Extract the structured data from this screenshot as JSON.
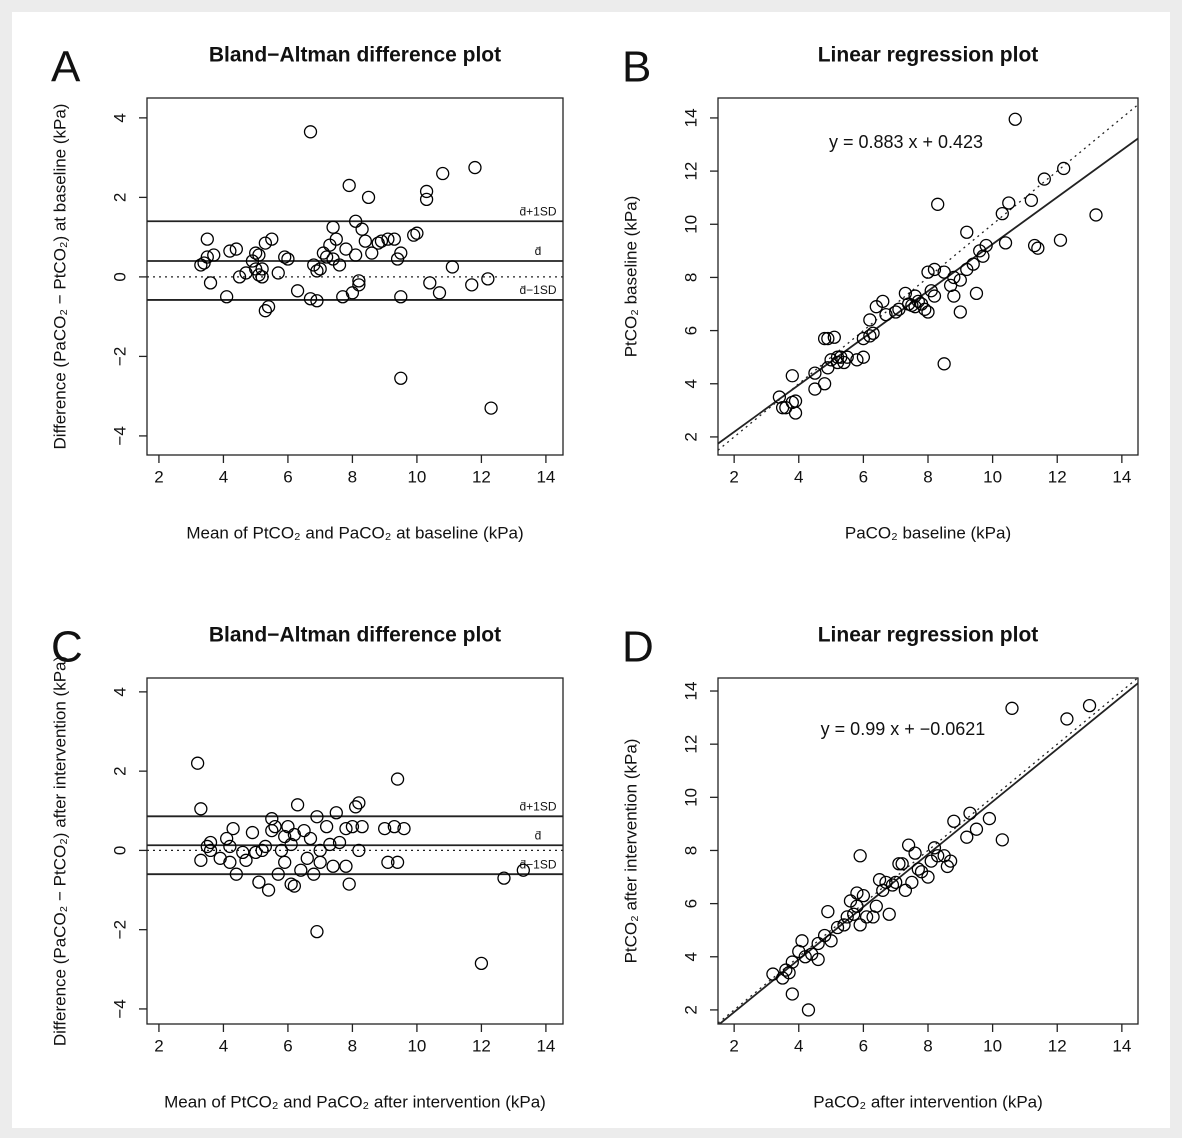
{
  "chart_data": [
    {
      "type": "bland-altman",
      "panel_label": "A",
      "title": "Bland−Altman difference plot",
      "x_label": "Mean of PtCO₂ and PaCO₂ at baseline (kPa)",
      "y_label": "Difference (PaCO₂ − PtCO₂) at baseline (kPa)",
      "xlim": [
        1.63,
        14.53
      ],
      "ylim": [
        -4.48,
        4.5
      ],
      "xticks": [
        2,
        4,
        6,
        8,
        10,
        12,
        14
      ],
      "yticks": [
        {
          "value": -4,
          "label": "−4"
        },
        {
          "value": -2,
          "label": "−2"
        },
        0,
        2,
        4
      ],
      "reference_lines": [
        {
          "value": 1.4,
          "label": "d̄+1SD"
        },
        {
          "value": 0.4,
          "label": "d̄"
        },
        {
          "value": -0.58,
          "label": "d̄−1SD"
        },
        {
          "value": 0,
          "style": "dotted"
        }
      ],
      "marker_color": "#000000",
      "x": [
        3.3,
        3.4,
        3.5,
        3.5,
        3.6,
        3.7,
        4.1,
        4.2,
        4.4,
        4.5,
        4.7,
        4.9,
        5.0,
        5.0,
        5.1,
        5.1,
        5.2,
        5.2,
        5.3,
        5.3,
        5.4,
        5.5,
        5.7,
        5.9,
        6.0,
        6.3,
        6.7,
        6.7,
        6.8,
        6.9,
        6.9,
        7.0,
        7.1,
        7.2,
        7.3,
        7.4,
        7.4,
        7.5,
        7.6,
        7.7,
        7.8,
        7.9,
        8.0,
        8.1,
        8.1,
        8.2,
        8.2,
        8.3,
        8.4,
        8.5,
        8.6,
        8.8,
        8.9,
        9.1,
        9.3,
        9.4,
        9.5,
        9.5,
        9.5,
        9.9,
        10.0,
        10.3,
        10.3,
        10.4,
        10.7,
        10.8,
        11.1,
        11.7,
        11.8,
        12.2,
        12.3
      ],
      "values": [
        0.3,
        0.35,
        0.95,
        0.5,
        -0.15,
        0.55,
        -0.5,
        0.65,
        0.7,
        0.0,
        0.1,
        0.4,
        0.6,
        0.2,
        0.55,
        0.05,
        0.2,
        0.0,
        -0.85,
        0.85,
        -0.75,
        0.95,
        0.1,
        0.5,
        0.45,
        -0.35,
        3.65,
        -0.55,
        0.3,
        -0.6,
        0.15,
        0.2,
        0.6,
        0.5,
        0.8,
        1.25,
        0.45,
        0.95,
        0.3,
        -0.5,
        0.7,
        2.3,
        -0.4,
        1.4,
        0.55,
        -0.1,
        -0.2,
        1.2,
        0.9,
        2.0,
        0.6,
        0.85,
        0.9,
        0.95,
        0.95,
        0.45,
        0.6,
        -0.5,
        -2.55,
        1.05,
        1.1,
        2.15,
        1.95,
        -0.15,
        -0.4,
        2.6,
        0.25,
        -0.2,
        2.75,
        -0.05,
        -3.3
      ]
    },
    {
      "type": "regression",
      "panel_label": "B",
      "title": "Linear regression plot",
      "x_label": "PaCO₂ baseline (kPa)",
      "y_label": "PtCO₂ baseline (kPa)",
      "xlim": [
        1.5,
        14.5
      ],
      "ylim": [
        1.32,
        14.75
      ],
      "xticks": [
        2,
        4,
        6,
        8,
        10,
        12,
        14
      ],
      "yticks": [
        2,
        4,
        6,
        8,
        10,
        12,
        14
      ],
      "annotation": "y = 0.883 x + 0.423",
      "fit_lines": [
        {
          "slope": 0.883,
          "intercept": 0.423,
          "style": "solid"
        },
        {
          "slope": 1,
          "intercept": 0,
          "style": "dotted"
        }
      ],
      "marker_color": "#000000",
      "x": [
        3.4,
        3.5,
        3.6,
        3.8,
        3.8,
        3.9,
        3.9,
        4.5,
        4.5,
        4.8,
        4.8,
        4.9,
        4.9,
        5.0,
        5.1,
        5.2,
        5.2,
        5.3,
        5.4,
        5.5,
        5.8,
        6.0,
        6.0,
        6.2,
        6.2,
        6.3,
        6.4,
        6.6,
        6.7,
        7.0,
        7.1,
        7.3,
        7.4,
        7.5,
        7.6,
        7.6,
        7.7,
        7.8,
        7.9,
        8.0,
        8.0,
        8.1,
        8.2,
        8.2,
        8.3,
        8.5,
        8.5,
        8.7,
        8.8,
        8.8,
        9.0,
        9.0,
        9.2,
        9.2,
        9.4,
        9.5,
        9.6,
        9.7,
        9.8,
        10.3,
        10.4,
        10.5,
        10.7,
        11.2,
        11.3,
        11.4,
        11.6,
        12.1,
        12.2,
        13.2
      ],
      "values": [
        3.5,
        3.1,
        3.1,
        3.3,
        4.3,
        2.9,
        3.35,
        3.8,
        4.4,
        4.0,
        5.7,
        5.7,
        4.6,
        4.9,
        5.75,
        4.8,
        5.0,
        5.0,
        4.8,
        5.0,
        4.9,
        5.0,
        5.7,
        6.4,
        5.8,
        5.9,
        6.9,
        7.1,
        6.6,
        6.7,
        6.8,
        7.4,
        7.0,
        6.95,
        7.3,
        6.9,
        7.1,
        7.0,
        6.8,
        8.2,
        6.7,
        7.5,
        8.3,
        7.3,
        10.75,
        4.75,
        8.2,
        7.7,
        7.3,
        8.0,
        6.7,
        7.9,
        9.7,
        8.3,
        8.5,
        7.4,
        9.0,
        8.8,
        9.2,
        10.4,
        9.3,
        10.8,
        13.95,
        10.9,
        9.2,
        9.1,
        11.7,
        9.4,
        12.1,
        10.35
      ]
    },
    {
      "type": "bland-altman",
      "panel_label": "C",
      "title": "Bland−Altman difference plot",
      "x_label": "Mean of PtCO₂ and PaCO₂ after intervention (kPa)",
      "y_label": "Difference (PaCO₂ − PtCO₂) after intervention (kPa)",
      "xlim": [
        1.63,
        14.53
      ],
      "ylim": [
        -4.38,
        4.35
      ],
      "xticks": [
        2,
        4,
        6,
        8,
        10,
        12,
        14
      ],
      "yticks": [
        {
          "value": -4,
          "label": "−4"
        },
        {
          "value": -2,
          "label": "−2"
        },
        0,
        2,
        4
      ],
      "reference_lines": [
        {
          "value": 0.86,
          "label": "d̄+1SD"
        },
        {
          "value": 0.13,
          "label": "d̄"
        },
        {
          "value": -0.6,
          "label": "d̄−1SD"
        },
        {
          "value": 0,
          "style": "dotted"
        }
      ],
      "marker_color": "#000000",
      "x": [
        3.2,
        3.3,
        3.3,
        3.5,
        3.6,
        3.6,
        3.9,
        4.1,
        4.2,
        4.2,
        4.3,
        4.4,
        4.6,
        4.7,
        4.9,
        5.0,
        5.1,
        5.2,
        5.3,
        5.4,
        5.5,
        5.5,
        5.6,
        5.7,
        5.8,
        5.9,
        5.9,
        6.0,
        6.1,
        6.1,
        6.2,
        6.2,
        6.3,
        6.4,
        6.5,
        6.6,
        6.7,
        6.8,
        6.9,
        6.9,
        7.0,
        7.0,
        7.2,
        7.3,
        7.4,
        7.5,
        7.6,
        7.8,
        7.8,
        7.9,
        8.0,
        8.1,
        8.2,
        8.2,
        8.3,
        9.0,
        9.1,
        9.3,
        9.4,
        9.4,
        9.6,
        12.0,
        12.7,
        13.3
      ],
      "values": [
        2.2,
        1.05,
        -0.25,
        0.1,
        0.2,
        0.0,
        -0.2,
        0.3,
        0.1,
        -0.3,
        0.55,
        -0.6,
        -0.05,
        -0.25,
        0.45,
        -0.05,
        -0.8,
        0.0,
        0.1,
        -1.0,
        0.8,
        0.5,
        0.6,
        -0.6,
        0.0,
        -0.3,
        0.35,
        0.6,
        -0.85,
        0.15,
        -0.9,
        0.4,
        1.15,
        -0.5,
        0.5,
        -0.2,
        0.3,
        -0.6,
        -2.05,
        0.85,
        0.0,
        -0.3,
        0.6,
        0.15,
        -0.4,
        0.95,
        0.2,
        0.55,
        -0.4,
        -0.85,
        0.6,
        1.1,
        1.2,
        0.0,
        0.6,
        0.55,
        -0.3,
        0.6,
        1.8,
        -0.3,
        0.55,
        -2.85,
        -0.7,
        -0.5
      ]
    },
    {
      "type": "regression",
      "panel_label": "D",
      "title": "Linear regression plot",
      "x_label": "PaCO₂ after intervention (kPa)",
      "y_label": "PtCO₂ after intervention (kPa)",
      "xlim": [
        1.5,
        14.5
      ],
      "ylim": [
        1.47,
        14.49
      ],
      "xticks": [
        2,
        4,
        6,
        8,
        10,
        12,
        14
      ],
      "yticks": [
        2,
        4,
        6,
        8,
        10,
        12,
        14
      ],
      "annotation": "y = 0.99 x + −0.0621",
      "fit_lines": [
        {
          "slope": 0.99,
          "intercept": -0.0621,
          "style": "solid"
        },
        {
          "slope": 1,
          "intercept": 0,
          "style": "dotted"
        }
      ],
      "marker_color": "#000000",
      "x": [
        3.2,
        3.5,
        3.6,
        3.7,
        3.8,
        3.8,
        4.0,
        4.1,
        4.2,
        4.3,
        4.4,
        4.6,
        4.6,
        4.8,
        4.9,
        5.0,
        5.2,
        5.4,
        5.5,
        5.6,
        5.7,
        5.8,
        5.8,
        5.9,
        5.9,
        6.0,
        6.1,
        6.3,
        6.4,
        6.5,
        6.6,
        6.7,
        6.8,
        6.9,
        7.0,
        7.1,
        7.2,
        7.3,
        7.4,
        7.5,
        7.6,
        7.7,
        7.8,
        8.0,
        8.1,
        8.2,
        8.3,
        8.5,
        8.6,
        8.7,
        8.8,
        9.2,
        9.3,
        9.5,
        9.9,
        10.3,
        10.6,
        12.3,
        13.0
      ],
      "values": [
        3.35,
        3.2,
        3.5,
        3.4,
        2.6,
        3.8,
        4.2,
        4.6,
        4.0,
        2.0,
        4.1,
        3.9,
        4.5,
        4.8,
        5.7,
        4.6,
        5.1,
        5.2,
        5.5,
        6.1,
        5.6,
        6.4,
        5.9,
        5.2,
        7.8,
        6.3,
        5.5,
        5.5,
        5.9,
        6.9,
        6.5,
        6.8,
        5.6,
        6.7,
        6.8,
        7.5,
        7.5,
        6.5,
        8.2,
        6.8,
        7.9,
        7.3,
        7.2,
        7.0,
        7.6,
        8.1,
        7.8,
        7.8,
        7.4,
        7.6,
        9.1,
        8.5,
        9.4,
        8.8,
        9.2,
        8.4,
        13.35,
        12.95,
        13.45
      ]
    }
  ]
}
